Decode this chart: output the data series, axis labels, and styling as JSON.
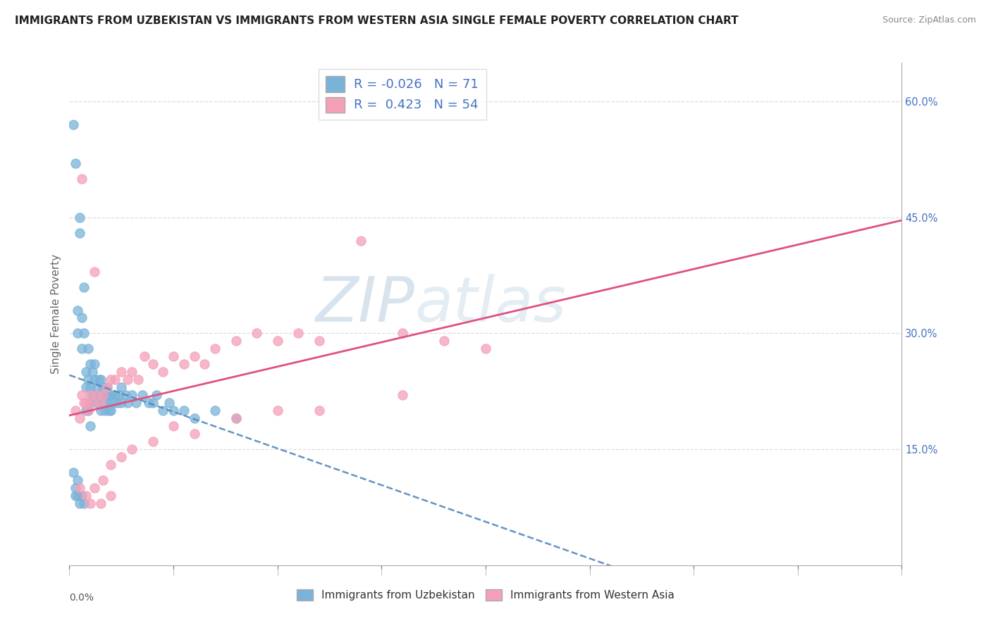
{
  "title": "IMMIGRANTS FROM UZBEKISTAN VS IMMIGRANTS FROM WESTERN ASIA SINGLE FEMALE POVERTY CORRELATION CHART",
  "source": "Source: ZipAtlas.com",
  "ylabel_label": "Single Female Poverty",
  "xlim": [
    0.0,
    0.4
  ],
  "ylim": [
    0.0,
    0.65
  ],
  "r_blue": -0.026,
  "n_blue": 71,
  "r_pink": 0.423,
  "n_pink": 54,
  "blue_color": "#7ab3d9",
  "pink_color": "#f4a0b8",
  "blue_line_color": "#5588bb",
  "pink_line_color": "#e05080",
  "legend_label_blue": "Immigrants from Uzbekistan",
  "legend_label_pink": "Immigrants from Western Asia",
  "blue_x": [
    0.002,
    0.003,
    0.004,
    0.004,
    0.005,
    0.005,
    0.006,
    0.006,
    0.007,
    0.007,
    0.008,
    0.008,
    0.008,
    0.009,
    0.009,
    0.009,
    0.01,
    0.01,
    0.01,
    0.01,
    0.011,
    0.011,
    0.012,
    0.012,
    0.012,
    0.013,
    0.013,
    0.014,
    0.014,
    0.015,
    0.015,
    0.015,
    0.016,
    0.016,
    0.017,
    0.017,
    0.018,
    0.018,
    0.019,
    0.019,
    0.02,
    0.02,
    0.021,
    0.022,
    0.023,
    0.024,
    0.025,
    0.025,
    0.027,
    0.028,
    0.03,
    0.032,
    0.035,
    0.038,
    0.04,
    0.042,
    0.045,
    0.048,
    0.05,
    0.055,
    0.06,
    0.07,
    0.08,
    0.002,
    0.003,
    0.003,
    0.004,
    0.004,
    0.005,
    0.006,
    0.007
  ],
  "blue_y": [
    0.57,
    0.52,
    0.33,
    0.3,
    0.45,
    0.43,
    0.32,
    0.28,
    0.36,
    0.3,
    0.25,
    0.23,
    0.2,
    0.28,
    0.24,
    0.2,
    0.26,
    0.23,
    0.21,
    0.18,
    0.25,
    0.22,
    0.26,
    0.24,
    0.22,
    0.23,
    0.21,
    0.24,
    0.22,
    0.24,
    0.22,
    0.2,
    0.23,
    0.21,
    0.22,
    0.2,
    0.23,
    0.21,
    0.22,
    0.2,
    0.22,
    0.2,
    0.21,
    0.22,
    0.21,
    0.22,
    0.21,
    0.23,
    0.22,
    0.21,
    0.22,
    0.21,
    0.22,
    0.21,
    0.21,
    0.22,
    0.2,
    0.21,
    0.2,
    0.2,
    0.19,
    0.2,
    0.19,
    0.12,
    0.1,
    0.09,
    0.11,
    0.09,
    0.08,
    0.09,
    0.08
  ],
  "pink_x": [
    0.003,
    0.005,
    0.006,
    0.007,
    0.008,
    0.009,
    0.01,
    0.011,
    0.012,
    0.013,
    0.015,
    0.016,
    0.018,
    0.02,
    0.022,
    0.025,
    0.028,
    0.03,
    0.033,
    0.036,
    0.04,
    0.045,
    0.05,
    0.055,
    0.06,
    0.065,
    0.07,
    0.08,
    0.09,
    0.1,
    0.11,
    0.12,
    0.14,
    0.16,
    0.18,
    0.2,
    0.005,
    0.008,
    0.012,
    0.016,
    0.02,
    0.025,
    0.03,
    0.04,
    0.05,
    0.06,
    0.08,
    0.1,
    0.12,
    0.16,
    0.006,
    0.01,
    0.015,
    0.02
  ],
  "pink_y": [
    0.2,
    0.19,
    0.22,
    0.21,
    0.21,
    0.2,
    0.22,
    0.21,
    0.38,
    0.22,
    0.21,
    0.22,
    0.23,
    0.24,
    0.24,
    0.25,
    0.24,
    0.25,
    0.24,
    0.27,
    0.26,
    0.25,
    0.27,
    0.26,
    0.27,
    0.26,
    0.28,
    0.29,
    0.3,
    0.29,
    0.3,
    0.29,
    0.42,
    0.3,
    0.29,
    0.28,
    0.1,
    0.09,
    0.1,
    0.11,
    0.13,
    0.14,
    0.15,
    0.16,
    0.18,
    0.17,
    0.19,
    0.2,
    0.2,
    0.22,
    0.5,
    0.08,
    0.08,
    0.09
  ],
  "ytick_positions": [
    0.15,
    0.3,
    0.45,
    0.6
  ],
  "ytick_labels": [
    "15.0%",
    "30.0%",
    "45.0%",
    "60.0%"
  ]
}
